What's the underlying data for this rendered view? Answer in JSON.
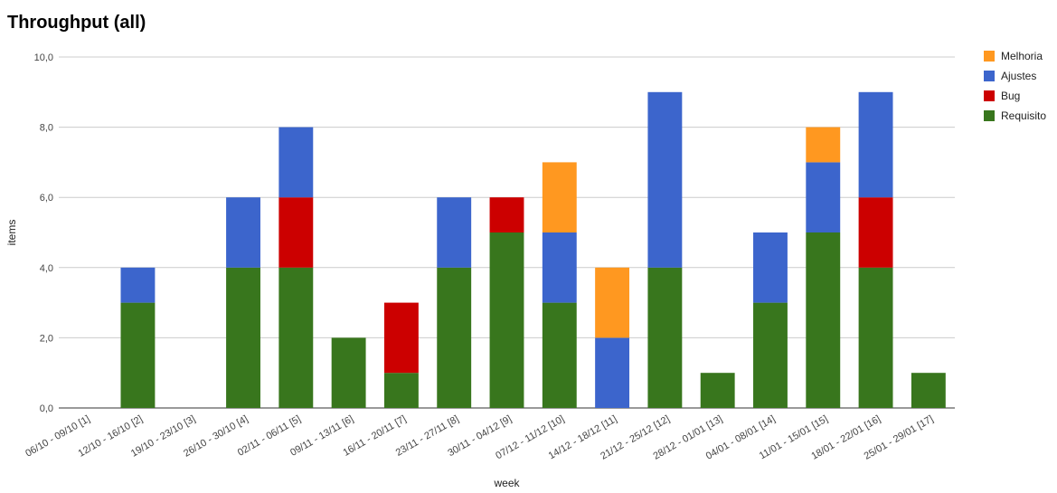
{
  "chart_data": {
    "type": "bar",
    "stacked": true,
    "title": "Throughput (all)",
    "xlabel": "week",
    "ylabel": "items",
    "ylim": [
      0,
      10
    ],
    "yticks": [
      "0,0",
      "2,0",
      "4,0",
      "6,0",
      "8,0",
      "10,0"
    ],
    "grid": true,
    "legend_position": "right",
    "categories": [
      "06/10 - 09/10 [1]",
      "12/10 - 16/10 [2]",
      "19/10 - 23/10 [3]",
      "26/10 - 30/10 [4]",
      "02/11 - 06/11 [5]",
      "09/11 - 13/11 [6]",
      "16/11 - 20/11 [7]",
      "23/11 - 27/11 [8]",
      "30/11 - 04/12 [9]",
      "07/12 - 11/12 [10]",
      "14/12 - 18/12 [11]",
      "21/12 - 25/12 [12]",
      "28/12 - 01/01 [13]",
      "04/01 - 08/01 [14]",
      "11/01 - 15/01 [15]",
      "18/01 - 22/01 [16]",
      "25/01 - 29/01 [17]"
    ],
    "series": [
      {
        "name": "Requisito",
        "color": "#38761d",
        "values": [
          0,
          3,
          0,
          4,
          4,
          2,
          1,
          4,
          5,
          3,
          0,
          4,
          1,
          3,
          5,
          4,
          1
        ]
      },
      {
        "name": "Bug",
        "color": "#cc0000",
        "values": [
          0,
          0,
          0,
          0,
          2,
          0,
          2,
          0,
          1,
          0,
          0,
          0,
          0,
          0,
          0,
          2,
          0
        ]
      },
      {
        "name": "Ajustes",
        "color": "#3c65cc",
        "values": [
          0,
          1,
          0,
          2,
          2,
          0,
          0,
          2,
          0,
          2,
          2,
          5,
          0,
          2,
          2,
          3,
          0
        ]
      },
      {
        "name": "Melhoria",
        "color": "#ff9820",
        "values": [
          0,
          0,
          0,
          0,
          0,
          0,
          0,
          0,
          0,
          2,
          2,
          0,
          0,
          0,
          1,
          0,
          0
        ]
      }
    ],
    "legend_order": [
      "Melhoria",
      "Ajustes",
      "Bug",
      "Requisito"
    ]
  }
}
